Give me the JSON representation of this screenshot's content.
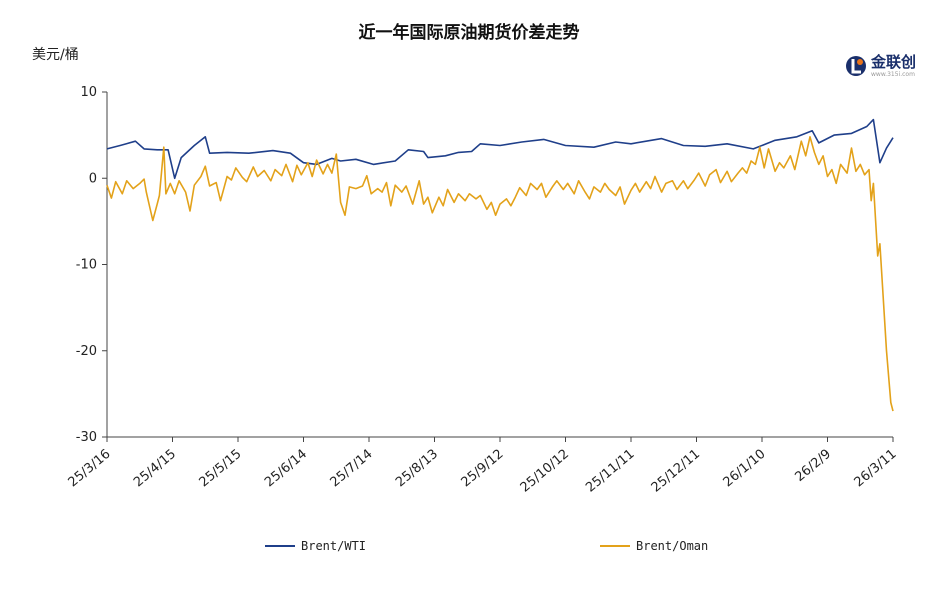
{
  "title": "近一年国际原油期货价差走势",
  "unit": "美元/桶",
  "logo": {
    "text": "金联创",
    "sub": "www.315i.com",
    "mark_color": "#1a2f6b",
    "accent_color": "#e8731a"
  },
  "chart_data": {
    "type": "line",
    "title": "近一年国际原油期货价差走势",
    "ylabel": "美元/桶",
    "ylim": [
      -30,
      10
    ],
    "yticks": [
      10,
      0,
      -10,
      -20,
      -30
    ],
    "xlim": [
      "2025-03-16",
      "2026-03-11"
    ],
    "xticks": [
      {
        "label": "25/3/16",
        "date": "2025-03-16"
      },
      {
        "label": "25/4/15",
        "date": "2025-04-15"
      },
      {
        "label": "25/5/15",
        "date": "2025-05-15"
      },
      {
        "label": "25/6/14",
        "date": "2025-06-14"
      },
      {
        "label": "25/7/14",
        "date": "2025-07-14"
      },
      {
        "label": "25/8/13",
        "date": "2025-08-13"
      },
      {
        "label": "25/9/12",
        "date": "2025-09-12"
      },
      {
        "label": "25/10/12",
        "date": "2025-10-12"
      },
      {
        "label": "25/11/11",
        "date": "2025-11-11"
      },
      {
        "label": "25/12/11",
        "date": "2025-12-11"
      },
      {
        "label": "26/1/10",
        "date": "2026-01-10"
      },
      {
        "label": "26/2/9",
        "date": "2026-02-09"
      },
      {
        "label": "26/3/11",
        "date": "2026-03-11"
      }
    ],
    "legend_position": "bottom",
    "grid": false,
    "series": [
      {
        "name": "Brent/WTI",
        "color": "#1f3f8a",
        "points": [
          [
            "2025-03-16",
            3.4
          ],
          [
            "2025-03-22",
            3.8
          ],
          [
            "2025-03-29",
            4.3
          ],
          [
            "2025-04-02",
            3.4
          ],
          [
            "2025-04-08",
            3.3
          ],
          [
            "2025-04-13",
            3.3
          ],
          [
            "2025-04-16",
            0.0
          ],
          [
            "2025-04-19",
            2.4
          ],
          [
            "2025-04-25",
            3.8
          ],
          [
            "2025-04-30",
            4.8
          ],
          [
            "2025-05-02",
            2.9
          ],
          [
            "2025-05-10",
            3.0
          ],
          [
            "2025-05-20",
            2.9
          ],
          [
            "2025-05-31",
            3.2
          ],
          [
            "2025-06-08",
            2.9
          ],
          [
            "2025-06-14",
            1.8
          ],
          [
            "2025-06-20",
            1.6
          ],
          [
            "2025-06-27",
            2.3
          ],
          [
            "2025-07-01",
            2.0
          ],
          [
            "2025-07-08",
            2.2
          ],
          [
            "2025-07-16",
            1.6
          ],
          [
            "2025-07-26",
            2.0
          ],
          [
            "2025-08-01",
            3.3
          ],
          [
            "2025-08-08",
            3.1
          ],
          [
            "2025-08-10",
            2.4
          ],
          [
            "2025-08-18",
            2.6
          ],
          [
            "2025-08-24",
            3.0
          ],
          [
            "2025-08-30",
            3.1
          ],
          [
            "2025-09-03",
            4.0
          ],
          [
            "2025-09-12",
            3.8
          ],
          [
            "2025-09-22",
            4.2
          ],
          [
            "2025-10-02",
            4.5
          ],
          [
            "2025-10-12",
            3.8
          ],
          [
            "2025-10-25",
            3.6
          ],
          [
            "2025-11-04",
            4.2
          ],
          [
            "2025-11-11",
            4.0
          ],
          [
            "2025-11-25",
            4.6
          ],
          [
            "2025-12-05",
            3.8
          ],
          [
            "2025-12-15",
            3.7
          ],
          [
            "2025-12-25",
            4.0
          ],
          [
            "2026-01-06",
            3.4
          ],
          [
            "2026-01-16",
            4.4
          ],
          [
            "2026-01-26",
            4.8
          ],
          [
            "2026-02-02",
            5.5
          ],
          [
            "2026-02-05",
            4.1
          ],
          [
            "2026-02-12",
            5.0
          ],
          [
            "2026-02-20",
            5.2
          ],
          [
            "2026-02-27",
            6.0
          ],
          [
            "2026-03-02",
            6.8
          ],
          [
            "2026-03-05",
            1.8
          ],
          [
            "2026-03-08",
            3.5
          ],
          [
            "2026-03-11",
            4.7
          ]
        ]
      },
      {
        "name": "Brent/Oman",
        "color": "#e3a21a",
        "points": [
          [
            "2025-03-16",
            -0.8
          ],
          [
            "2025-03-18",
            -2.3
          ],
          [
            "2025-03-20",
            -0.4
          ],
          [
            "2025-03-23",
            -1.8
          ],
          [
            "2025-03-25",
            -0.3
          ],
          [
            "2025-03-28",
            -1.2
          ],
          [
            "2025-03-31",
            -0.6
          ],
          [
            "2025-04-02",
            -0.1
          ],
          [
            "2025-04-03",
            -1.6
          ],
          [
            "2025-04-06",
            -4.9
          ],
          [
            "2025-04-08",
            -3.0
          ],
          [
            "2025-04-09",
            -2.0
          ],
          [
            "2025-04-11",
            3.6
          ],
          [
            "2025-04-12",
            -1.8
          ],
          [
            "2025-04-14",
            -0.6
          ],
          [
            "2025-04-16",
            -1.8
          ],
          [
            "2025-04-18",
            -0.3
          ],
          [
            "2025-04-21",
            -1.6
          ],
          [
            "2025-04-23",
            -3.8
          ],
          [
            "2025-04-25",
            -0.8
          ],
          [
            "2025-04-28",
            0.2
          ],
          [
            "2025-04-30",
            1.4
          ],
          [
            "2025-05-02",
            -0.9
          ],
          [
            "2025-05-05",
            -0.5
          ],
          [
            "2025-05-07",
            -2.6
          ],
          [
            "2025-05-10",
            0.2
          ],
          [
            "2025-05-12",
            -0.2
          ],
          [
            "2025-05-14",
            1.2
          ],
          [
            "2025-05-17",
            0.1
          ],
          [
            "2025-05-19",
            -0.4
          ],
          [
            "2025-05-22",
            1.3
          ],
          [
            "2025-05-24",
            0.2
          ],
          [
            "2025-05-27",
            0.9
          ],
          [
            "2025-05-30",
            -0.3
          ],
          [
            "2025-06-01",
            1.0
          ],
          [
            "2025-06-04",
            0.3
          ],
          [
            "2025-06-06",
            1.6
          ],
          [
            "2025-06-09",
            -0.4
          ],
          [
            "2025-06-11",
            1.5
          ],
          [
            "2025-06-13",
            0.4
          ],
          [
            "2025-06-16",
            1.8
          ],
          [
            "2025-06-18",
            0.2
          ],
          [
            "2025-06-20",
            2.1
          ],
          [
            "2025-06-23",
            0.5
          ],
          [
            "2025-06-25",
            1.6
          ],
          [
            "2025-06-27",
            0.6
          ],
          [
            "2025-06-29",
            2.8
          ],
          [
            "2025-07-01",
            -2.8
          ],
          [
            "2025-07-03",
            -4.3
          ],
          [
            "2025-07-05",
            -1.0
          ],
          [
            "2025-07-08",
            -1.2
          ],
          [
            "2025-07-11",
            -0.9
          ],
          [
            "2025-07-13",
            0.3
          ],
          [
            "2025-07-15",
            -1.8
          ],
          [
            "2025-07-18",
            -1.2
          ],
          [
            "2025-07-20",
            -1.6
          ],
          [
            "2025-07-22",
            -0.5
          ],
          [
            "2025-07-24",
            -3.2
          ],
          [
            "2025-07-26",
            -0.8
          ],
          [
            "2025-07-29",
            -1.6
          ],
          [
            "2025-07-31",
            -0.9
          ],
          [
            "2025-08-03",
            -3.0
          ],
          [
            "2025-08-06",
            -0.3
          ],
          [
            "2025-08-08",
            -3.0
          ],
          [
            "2025-08-10",
            -2.2
          ],
          [
            "2025-08-12",
            -4.0
          ],
          [
            "2025-08-15",
            -2.2
          ],
          [
            "2025-08-17",
            -3.2
          ],
          [
            "2025-08-19",
            -1.3
          ],
          [
            "2025-08-22",
            -2.8
          ],
          [
            "2025-08-24",
            -1.8
          ],
          [
            "2025-08-27",
            -2.6
          ],
          [
            "2025-08-29",
            -1.8
          ],
          [
            "2025-09-01",
            -2.4
          ],
          [
            "2025-09-03",
            -2.0
          ],
          [
            "2025-09-06",
            -3.6
          ],
          [
            "2025-09-08",
            -2.8
          ],
          [
            "2025-09-10",
            -4.3
          ],
          [
            "2025-09-12",
            -3.0
          ],
          [
            "2025-09-15",
            -2.4
          ],
          [
            "2025-09-17",
            -3.2
          ],
          [
            "2025-09-19",
            -2.2
          ],
          [
            "2025-09-21",
            -1.1
          ],
          [
            "2025-09-24",
            -2.0
          ],
          [
            "2025-09-26",
            -0.6
          ],
          [
            "2025-09-29",
            -1.3
          ],
          [
            "2025-10-01",
            -0.6
          ],
          [
            "2025-10-03",
            -2.2
          ],
          [
            "2025-10-06",
            -1.0
          ],
          [
            "2025-10-08",
            -0.3
          ],
          [
            "2025-10-11",
            -1.3
          ],
          [
            "2025-10-13",
            -0.6
          ],
          [
            "2025-10-16",
            -1.8
          ],
          [
            "2025-10-18",
            -0.3
          ],
          [
            "2025-10-21",
            -1.6
          ],
          [
            "2025-10-23",
            -2.4
          ],
          [
            "2025-10-25",
            -1.0
          ],
          [
            "2025-10-28",
            -1.6
          ],
          [
            "2025-10-30",
            -0.6
          ],
          [
            "2025-11-01",
            -1.3
          ],
          [
            "2025-11-04",
            -2.0
          ],
          [
            "2025-11-06",
            -1.0
          ],
          [
            "2025-11-08",
            -3.0
          ],
          [
            "2025-11-11",
            -1.4
          ],
          [
            "2025-11-13",
            -0.6
          ],
          [
            "2025-11-15",
            -1.6
          ],
          [
            "2025-11-18",
            -0.4
          ],
          [
            "2025-11-20",
            -1.2
          ],
          [
            "2025-11-22",
            0.2
          ],
          [
            "2025-11-25",
            -1.6
          ],
          [
            "2025-11-27",
            -0.6
          ],
          [
            "2025-11-30",
            -0.3
          ],
          [
            "2025-12-02",
            -1.3
          ],
          [
            "2025-12-05",
            -0.3
          ],
          [
            "2025-12-07",
            -1.2
          ],
          [
            "2025-12-10",
            -0.2
          ],
          [
            "2025-12-12",
            0.6
          ],
          [
            "2025-12-15",
            -0.9
          ],
          [
            "2025-12-17",
            0.4
          ],
          [
            "2025-12-20",
            1.0
          ],
          [
            "2025-12-22",
            -0.5
          ],
          [
            "2025-12-25",
            0.8
          ],
          [
            "2025-12-27",
            -0.4
          ],
          [
            "2025-12-30",
            0.6
          ],
          [
            "2026-01-01",
            1.2
          ],
          [
            "2026-01-03",
            0.6
          ],
          [
            "2026-01-05",
            2.0
          ],
          [
            "2026-01-07",
            1.6
          ],
          [
            "2026-01-09",
            3.6
          ],
          [
            "2026-01-11",
            1.2
          ],
          [
            "2026-01-13",
            3.4
          ],
          [
            "2026-01-16",
            0.8
          ],
          [
            "2026-01-18",
            1.8
          ],
          [
            "2026-01-20",
            1.2
          ],
          [
            "2026-01-23",
            2.6
          ],
          [
            "2026-01-25",
            1.0
          ],
          [
            "2026-01-28",
            4.3
          ],
          [
            "2026-01-30",
            2.6
          ],
          [
            "2026-02-01",
            4.8
          ],
          [
            "2026-02-03",
            3.0
          ],
          [
            "2026-02-05",
            1.6
          ],
          [
            "2026-02-07",
            2.6
          ],
          [
            "2026-02-09",
            0.2
          ],
          [
            "2026-02-11",
            1.0
          ],
          [
            "2026-02-13",
            -0.6
          ],
          [
            "2026-02-15",
            1.6
          ],
          [
            "2026-02-18",
            0.6
          ],
          [
            "2026-02-20",
            3.5
          ],
          [
            "2026-02-22",
            0.8
          ],
          [
            "2026-02-24",
            1.6
          ],
          [
            "2026-02-26",
            0.4
          ],
          [
            "2026-02-28",
            1.0
          ],
          [
            "2026-03-01",
            -2.6
          ],
          [
            "2026-03-02",
            -0.6
          ],
          [
            "2026-03-04",
            -9.0
          ],
          [
            "2026-03-05",
            -7.6
          ],
          [
            "2026-03-08",
            -20.0
          ],
          [
            "2026-03-10",
            -26.0
          ],
          [
            "2026-03-11",
            -27.0
          ]
        ]
      }
    ]
  }
}
